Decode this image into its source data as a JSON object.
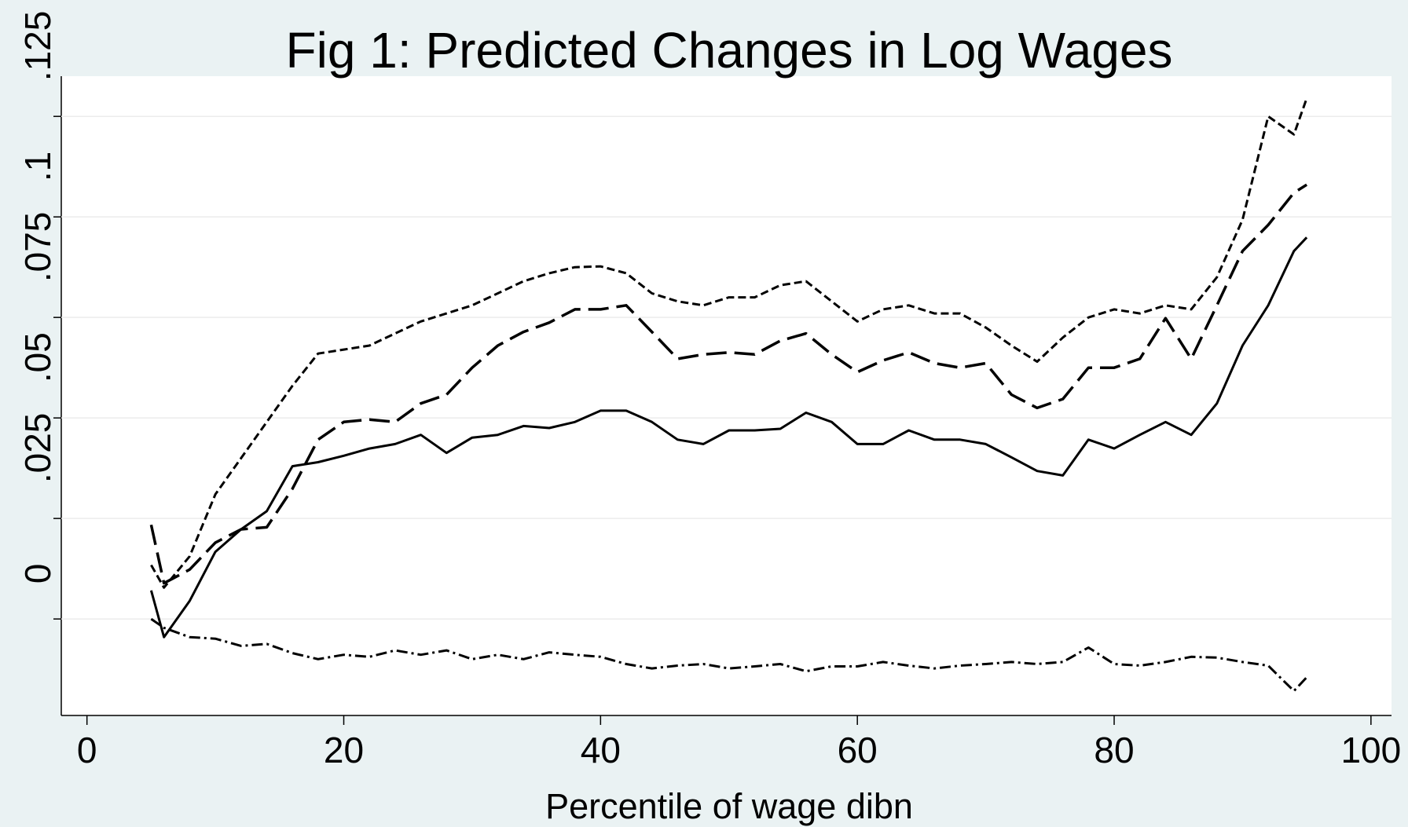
{
  "chart_data": {
    "type": "line",
    "title": "Fig 1: Predicted Changes in Log Wages",
    "x_label": "Percentile of wage dibn",
    "x": [
      5,
      6,
      8,
      10,
      12,
      14,
      16,
      18,
      20,
      22,
      24,
      26,
      28,
      30,
      32,
      34,
      36,
      38,
      40,
      42,
      44,
      46,
      48,
      50,
      52,
      54,
      56,
      58,
      60,
      62,
      64,
      66,
      68,
      70,
      72,
      74,
      76,
      78,
      80,
      82,
      84,
      86,
      88,
      90,
      92,
      94,
      95
    ],
    "series": [
      {
        "color": "#000000",
        "dash": "10,5",
        "width": 3,
        "values": [
          0.0134,
          0.0078,
          0.0156,
          0.031,
          0.04,
          0.049,
          0.058,
          0.066,
          0.067,
          0.068,
          0.071,
          0.074,
          0.076,
          0.078,
          0.081,
          0.084,
          0.086,
          0.0875,
          0.0877,
          0.086,
          0.081,
          0.079,
          0.078,
          0.08,
          0.08,
          0.083,
          0.084,
          0.079,
          0.074,
          0.077,
          0.078,
          0.076,
          0.076,
          0.0725,
          0.068,
          0.064,
          0.07,
          0.075,
          0.077,
          0.076,
          0.078,
          0.077,
          0.085,
          0.0993,
          0.125,
          0.1205,
          0.1295
        ]
      },
      {
        "color": "#000000",
        "dash": "26,10",
        "width": 3.5,
        "values": [
          0.0234,
          0.0089,
          0.0123,
          0.019,
          0.0223,
          0.0228,
          0.0324,
          0.0446,
          0.049,
          0.0496,
          0.049,
          0.0536,
          0.0558,
          0.0625,
          0.068,
          0.0714,
          0.0737,
          0.077,
          0.077,
          0.078,
          0.0714,
          0.0647,
          0.0658,
          0.0663,
          0.0658,
          0.0692,
          0.071,
          0.0658,
          0.0614,
          0.0643,
          0.0663,
          0.0636,
          0.0625,
          0.0636,
          0.0558,
          0.0525,
          0.0547,
          0.0625,
          0.0625,
          0.0647,
          0.0748,
          0.0647,
          0.078,
          0.0915,
          0.098,
          0.106,
          0.108
        ]
      },
      {
        "color": "#000000",
        "dash": "none",
        "width": 3,
        "values": [
          0.0071,
          -0.0045,
          0.0045,
          0.0167,
          0.0223,
          0.0268,
          0.038,
          0.039,
          0.0406,
          0.0424,
          0.0435,
          0.0458,
          0.0413,
          0.0451,
          0.0458,
          0.048,
          0.0475,
          0.049,
          0.0518,
          0.0518,
          0.049,
          0.0446,
          0.0435,
          0.0469,
          0.0469,
          0.0473,
          0.0513,
          0.049,
          0.0435,
          0.0435,
          0.0469,
          0.0446,
          0.0446,
          0.0435,
          0.0402,
          0.0368,
          0.0357,
          0.0446,
          0.0424,
          0.0458,
          0.049,
          0.0458,
          0.0536,
          0.068,
          0.078,
          0.0915,
          0.0949
        ]
      },
      {
        "color": "#000000",
        "dash": "14,5,3,5",
        "width": 3,
        "values": [
          0,
          -0.0022,
          -0.0045,
          -0.0049,
          -0.0067,
          -0.0062,
          -0.0085,
          -0.01,
          -0.0089,
          -0.0094,
          -0.0078,
          -0.0089,
          -0.0078,
          -0.01,
          -0.0089,
          -0.01,
          -0.0083,
          -0.0089,
          -0.0094,
          -0.0112,
          -0.0123,
          -0.0116,
          -0.0112,
          -0.0123,
          -0.0118,
          -0.0112,
          -0.013,
          -0.0118,
          -0.0118,
          -0.0107,
          -0.0116,
          -0.0123,
          -0.0116,
          -0.0112,
          -0.0107,
          -0.0112,
          -0.0107,
          -0.0071,
          -0.0112,
          -0.0116,
          -0.0107,
          -0.0094,
          -0.0096,
          -0.0107,
          -0.0116,
          -0.0179,
          -0.0145
        ]
      }
    ],
    "xlim": [
      -2,
      101.6
    ],
    "xticks": [
      0,
      20,
      40,
      60,
      80,
      100
    ],
    "ylim": [
      -0.024,
      0.135
    ],
    "yticks": [
      0,
      {
        "value": 0.025,
        "label": ".025"
      },
      {
        "value": 0.05,
        "label": ".05"
      },
      {
        "value": 0.075,
        "label": ".075"
      },
      {
        "value": 0.1,
        "label": ".1"
      },
      {
        "value": 0.125,
        "label": ".125"
      }
    ],
    "grid": true,
    "title_color": "#1f3b6b"
  }
}
